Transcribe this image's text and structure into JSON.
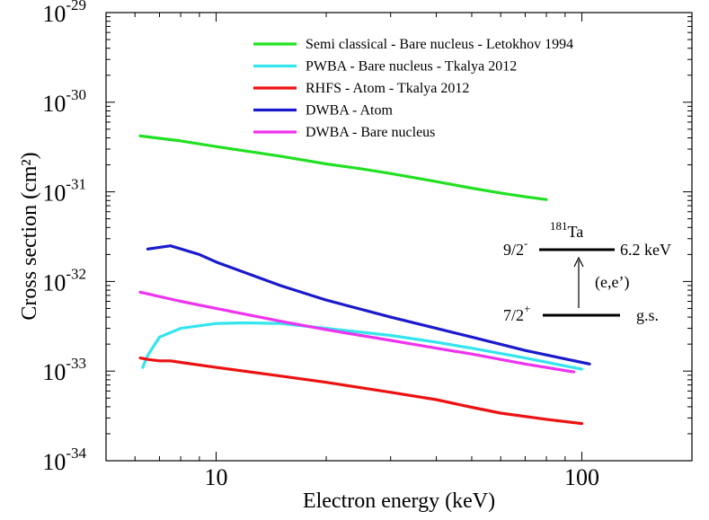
{
  "chart_data": {
    "type": "line",
    "title": "",
    "xlabel": "Electron energy (keV)",
    "ylabel": "Cross section (cm²)",
    "xscale": "log",
    "yscale": "log",
    "xlim": [
      5,
      200
    ],
    "ylim": [
      1e-34,
      1e-29
    ],
    "grid": false,
    "legend_position": "top-right",
    "x_ticks": [
      {
        "value": 10,
        "label": "10"
      },
      {
        "value": 100,
        "label": "100"
      }
    ],
    "y_ticks": [
      {
        "value": 1e-34,
        "mantissa": "10",
        "exponent": "-34"
      },
      {
        "value": 1e-33,
        "mantissa": "10",
        "exponent": "-33"
      },
      {
        "value": 1e-32,
        "mantissa": "10",
        "exponent": "-32"
      },
      {
        "value": 1e-31,
        "mantissa": "10",
        "exponent": "-31"
      },
      {
        "value": 1e-30,
        "mantissa": "10",
        "exponent": "-30"
      },
      {
        "value": 1e-29,
        "mantissa": "10",
        "exponent": "-29"
      }
    ],
    "series": [
      {
        "name": "Semi classical - Bare nucleus - Letokhov 1994",
        "color": "#22e022",
        "points": [
          [
            6.2,
            4.2e-31
          ],
          [
            8,
            3.7e-31
          ],
          [
            10,
            3.2e-31
          ],
          [
            15,
            2.5e-31
          ],
          [
            20,
            2.05e-31
          ],
          [
            25,
            1.8e-31
          ],
          [
            30,
            1.6e-31
          ],
          [
            40,
            1.3e-31
          ],
          [
            50,
            1.1e-31
          ],
          [
            60,
            9.7e-32
          ],
          [
            70,
            8.8e-32
          ],
          [
            80,
            8.2e-32
          ]
        ]
      },
      {
        "name": "PWBA - Bare nucleus - Tkalya 2012",
        "color": "#33e5ee",
        "points": [
          [
            6.3,
            1.1e-33
          ],
          [
            6.5,
            1.5e-33
          ],
          [
            7,
            2.4e-33
          ],
          [
            8,
            3e-33
          ],
          [
            10,
            3.4e-33
          ],
          [
            12,
            3.45e-33
          ],
          [
            15,
            3.4e-33
          ],
          [
            20,
            3e-33
          ],
          [
            30,
            2.5e-33
          ],
          [
            40,
            2.1e-33
          ],
          [
            50,
            1.8e-33
          ],
          [
            70,
            1.4e-33
          ],
          [
            100,
            1.05e-33
          ]
        ]
      },
      {
        "name": "RHFS - Atom - Tkalya 2012",
        "color": "#ee1111",
        "points": [
          [
            6.2,
            1.4e-33
          ],
          [
            6.5,
            1.35e-33
          ],
          [
            7,
            1.3e-33
          ],
          [
            7.5,
            1.3e-33
          ],
          [
            8,
            1.25e-33
          ],
          [
            10,
            1.1e-33
          ],
          [
            15,
            8.8e-34
          ],
          [
            20,
            7.5e-34
          ],
          [
            30,
            5.8e-34
          ],
          [
            40,
            4.8e-34
          ],
          [
            50,
            3.95e-34
          ],
          [
            60,
            3.4e-34
          ],
          [
            80,
            2.9e-34
          ],
          [
            100,
            2.6e-34
          ]
        ]
      },
      {
        "name": "DWBA - Atom",
        "color": "#1a1acc",
        "points": [
          [
            6.5,
            2.3e-32
          ],
          [
            7.5,
            2.5e-32
          ],
          [
            9,
            2e-32
          ],
          [
            10,
            1.65e-32
          ],
          [
            15,
            9e-33
          ],
          [
            20,
            6.2e-33
          ],
          [
            30,
            4e-33
          ],
          [
            40,
            3e-33
          ],
          [
            50,
            2.4e-33
          ],
          [
            70,
            1.7e-33
          ],
          [
            100,
            1.25e-33
          ],
          [
            105,
            1.2e-33
          ]
        ]
      },
      {
        "name": "DWBA - Bare nucleus",
        "color": "#ee33ee",
        "points": [
          [
            6.2,
            7.6e-33
          ],
          [
            8,
            6e-33
          ],
          [
            10,
            5e-33
          ],
          [
            15,
            3.6e-33
          ],
          [
            20,
            2.9e-33
          ],
          [
            30,
            2.2e-33
          ],
          [
            40,
            1.8e-33
          ],
          [
            50,
            1.55e-33
          ],
          [
            70,
            1.2e-33
          ],
          [
            95,
            9.8e-34
          ]
        ]
      }
    ],
    "inset": {
      "isotope_mass": "181",
      "isotope_symbol": "Ta",
      "upper_spin": "9/2",
      "upper_parity": "-",
      "upper_energy": "6.2 keV",
      "lower_spin": "7/2",
      "lower_parity": "+",
      "lower_label": "g.s.",
      "transition": "(e,e’)"
    }
  }
}
